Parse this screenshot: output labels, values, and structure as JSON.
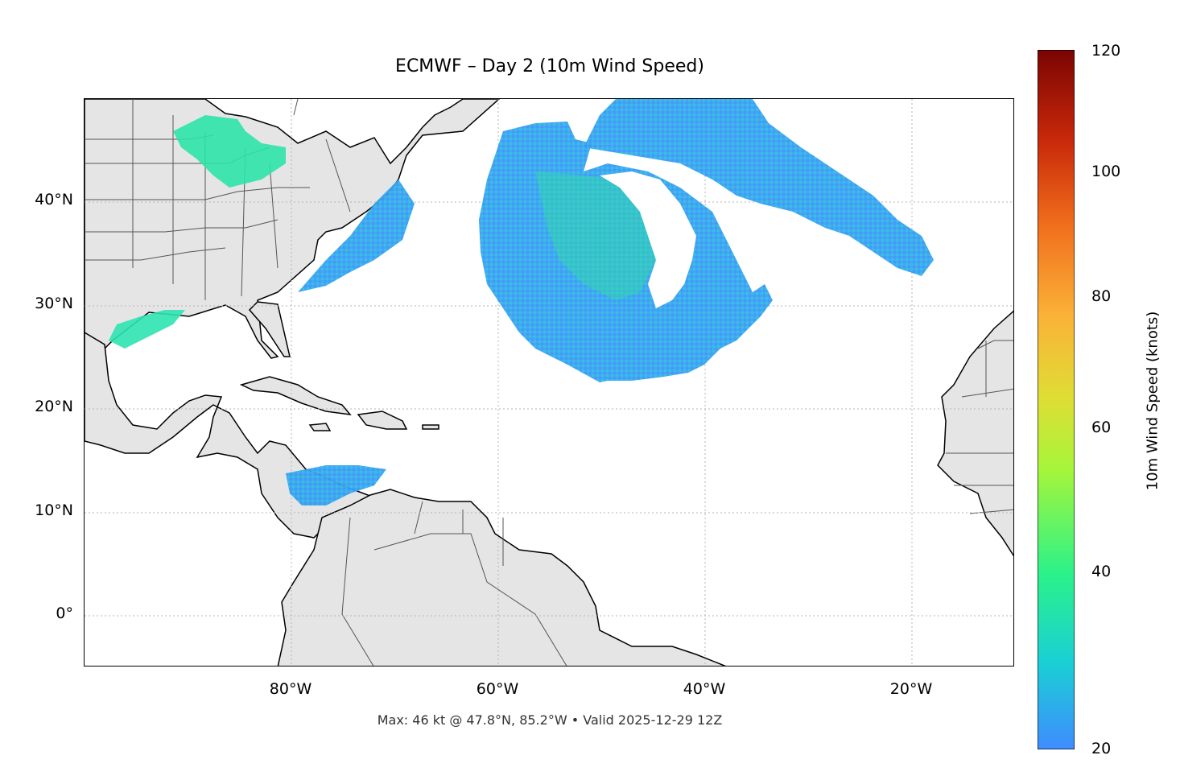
{
  "title": "ECMWF – Day 2 (10m Wind Speed)",
  "footnote": "Max: 46 kt @ 47.8°N, 85.2°W • Valid 2025-12-29 12Z",
  "lat_ticks": [
    "40°N",
    "30°N",
    "20°N",
    "10°N",
    "0°"
  ],
  "lon_ticks": [
    "80°W",
    "60°W",
    "40°W",
    "20°W"
  ],
  "colorbar": {
    "label": "10m Wind Speed (knots)",
    "ticks": [
      "20",
      "40",
      "60",
      "80",
      "100",
      "120"
    ],
    "min": 20,
    "max": 120,
    "extend": "max",
    "colormap_stops": [
      "#3f8cff",
      "#1ad0d4",
      "#2af28a",
      "#a6f53a",
      "#dede35",
      "#fbb238",
      "#f06e1c",
      "#c9290a",
      "#7a0403"
    ]
  },
  "map": {
    "extent": {
      "lon_min": -100,
      "lon_max": -10,
      "lat_min": -5,
      "lat_max": 50
    },
    "land_color": "#e5e5e5",
    "ocean_color": "#ffffff",
    "gridlines": "dotted"
  }
}
